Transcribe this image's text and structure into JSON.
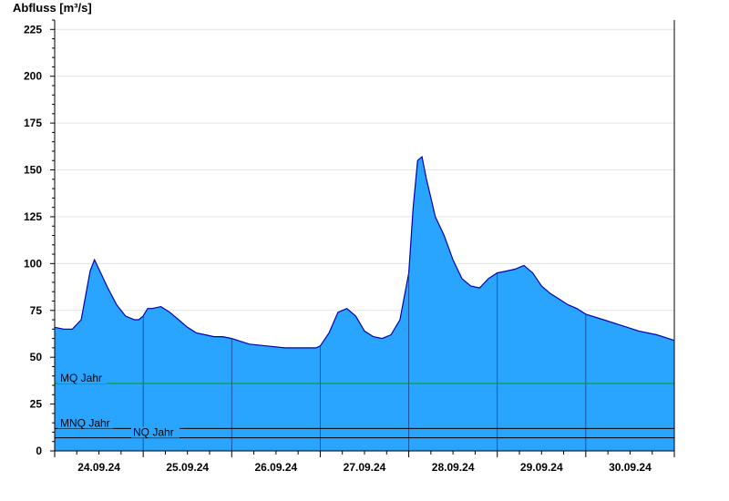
{
  "chart_data": {
    "type": "area",
    "ylabel": "Abfluss [m³/s]",
    "ylim": [
      0,
      230
    ],
    "yticks": [
      "0",
      "25",
      "50",
      "75",
      "100",
      "125",
      "150",
      "175",
      "200",
      "225"
    ],
    "ytick_values": [
      0,
      25,
      50,
      75,
      100,
      125,
      150,
      175,
      200,
      225
    ],
    "xlim": [
      0,
      7
    ],
    "xticks": [
      "24.09.24",
      "25.09.24",
      "26.09.24",
      "27.09.24",
      "28.09.24",
      "29.09.24",
      "30.09.24"
    ],
    "grid": true,
    "fill_color": "#2aa5ff",
    "line_color": "#0000b0",
    "series": [
      {
        "x": [
          0,
          0.1,
          0.2,
          0.3,
          0.4,
          0.45,
          0.5,
          0.6,
          0.7,
          0.8,
          0.9,
          0.95,
          1.0,
          1.05,
          1.1,
          1.2,
          1.3,
          1.4,
          1.5,
          1.6,
          1.7,
          1.8,
          1.9,
          2.0,
          2.2,
          2.4,
          2.6,
          2.8,
          2.95,
          3.0,
          3.1,
          3.2,
          3.3,
          3.4,
          3.5,
          3.6,
          3.7,
          3.8,
          3.9,
          4.0,
          4.05,
          4.1,
          4.15,
          4.2,
          4.25,
          4.3,
          4.35,
          4.4,
          4.5,
          4.6,
          4.7,
          4.8,
          4.9,
          5.0,
          5.1,
          5.2,
          5.3,
          5.4,
          5.5,
          5.6,
          5.7,
          5.8,
          5.9,
          6.0,
          6.2,
          6.4,
          6.6,
          6.8,
          7.0
        ],
        "values": [
          66,
          65,
          65,
          70,
          96,
          102,
          97,
          87,
          78,
          72,
          70,
          70,
          72,
          76,
          76,
          77,
          74,
          70,
          66,
          63,
          62,
          61,
          61,
          60,
          57,
          56,
          55,
          55,
          55,
          56,
          63,
          74,
          76,
          72,
          64,
          61,
          60,
          62,
          70,
          95,
          130,
          155,
          157,
          145,
          135,
          125,
          120,
          115,
          102,
          92,
          88,
          87,
          92,
          95,
          96,
          97,
          99,
          95,
          88,
          84,
          81,
          78,
          76,
          73,
          70,
          67,
          64,
          62,
          59
        ]
      }
    ],
    "reference_lines": [
      {
        "label": "MQ Jahr",
        "value": 36,
        "color": "#00a000"
      },
      {
        "label": "MNQ Jahr",
        "value": 12,
        "color": "#000000"
      },
      {
        "label": "NQ Jahr",
        "value": 7,
        "color": "#000000"
      }
    ]
  }
}
